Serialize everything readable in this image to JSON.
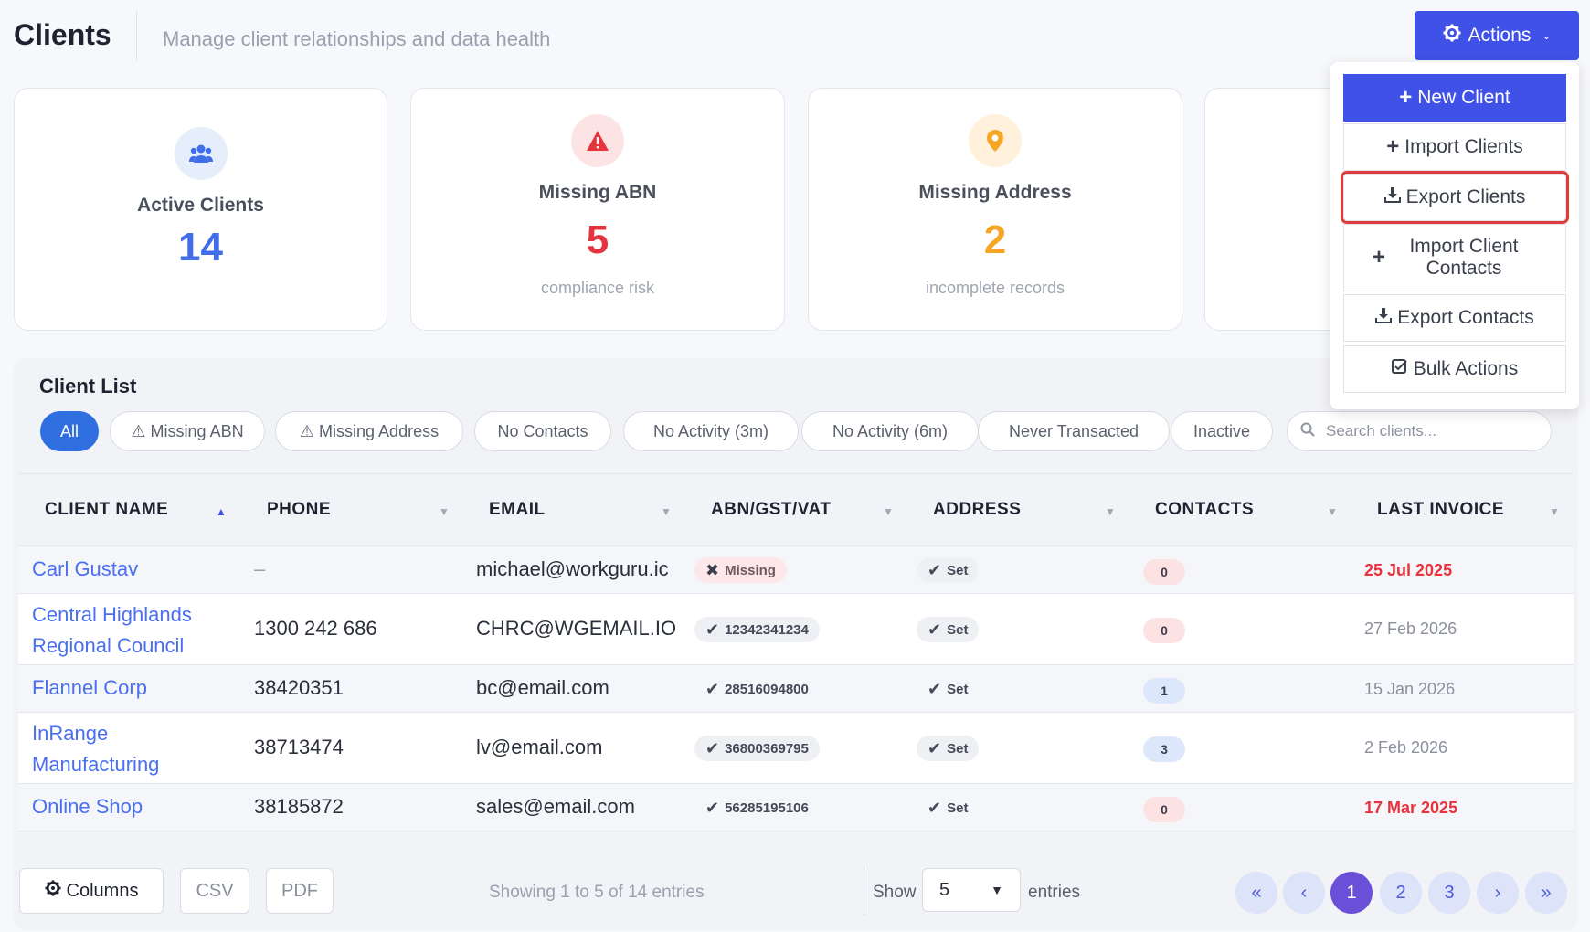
{
  "header": {
    "title": "Clients",
    "subtitle": "Manage client relationships and data health",
    "actions_label": "Actions"
  },
  "stats": [
    {
      "label": "Active Clients",
      "value": "14",
      "sub": "",
      "icon": "users-icon",
      "color": "#3f6ee8"
    },
    {
      "label": "Missing ABN",
      "value": "5",
      "sub": "compliance risk",
      "icon": "warning-icon",
      "color": "#e5343d"
    },
    {
      "label": "Missing Address",
      "value": "2",
      "sub": "incomplete records",
      "icon": "map-pin-icon",
      "color": "#f5a623"
    }
  ],
  "list": {
    "title": "Client List",
    "filters": [
      "All",
      "⚠ Missing ABN",
      "⚠ Missing Address",
      "No Contacts",
      "No Activity (3m)",
      "No Activity (6m)",
      "Never Transacted",
      "Inactive"
    ],
    "search_placeholder": "Search clients...",
    "columns": [
      "CLIENT NAME",
      "PHONE",
      "EMAIL",
      "ABN/GST/VAT",
      "ADDRESS",
      "CONTACTS",
      "LAST INVOICE"
    ],
    "rows": [
      {
        "name": "Carl Gustav",
        "phone": "–",
        "email": "michael@workguru.ic",
        "abn": "Missing",
        "abn_missing": true,
        "address": "Set",
        "contacts": "0",
        "last_invoice": "25 Jul 2025",
        "overdue": true
      },
      {
        "name": "Central Highlands Regional Council",
        "phone": "1300 242 686",
        "email": "CHRC@WGEMAIL.IO",
        "abn": "12342341234",
        "abn_missing": false,
        "address": "Set",
        "contacts": "0",
        "last_invoice": "27 Feb 2026",
        "overdue": false
      },
      {
        "name": "Flannel Corp",
        "phone": "38420351",
        "email": "bc@email.com",
        "abn": "28516094800",
        "abn_missing": false,
        "address": "Set",
        "contacts": "1",
        "last_invoice": "15 Jan 2026",
        "overdue": false
      },
      {
        "name": "InRange Manufacturing",
        "phone": "38713474",
        "email": "lv@email.com",
        "abn": "36800369795",
        "abn_missing": false,
        "address": "Set",
        "contacts": "3",
        "last_invoice": "2 Feb 2026",
        "overdue": false
      },
      {
        "name": "Online Shop",
        "phone": "38185872",
        "email": "sales@email.com",
        "abn": "56285195106",
        "abn_missing": false,
        "address": "Set",
        "contacts": "0",
        "last_invoice": "17 Mar 2025",
        "overdue": true
      }
    ]
  },
  "footer": {
    "columns_label": "Columns",
    "csv_label": "CSV",
    "pdf_label": "PDF",
    "showing": "Showing 1 to 5 of 14 entries",
    "show_label": "Show",
    "page_size": "5",
    "entries_label": "entries",
    "pages": [
      "1",
      "2",
      "3"
    ],
    "current_page": "1"
  },
  "menu": {
    "items": [
      "New Client",
      "Import Clients",
      "Export Clients",
      "Import Client Contacts",
      "Export Contacts",
      "Bulk Actions"
    ],
    "highlighted": "Export Clients"
  },
  "colors": {
    "primary": "#3f51e6",
    "link": "#4a6ff0",
    "danger": "#e5343d",
    "warning": "#f5a623"
  }
}
